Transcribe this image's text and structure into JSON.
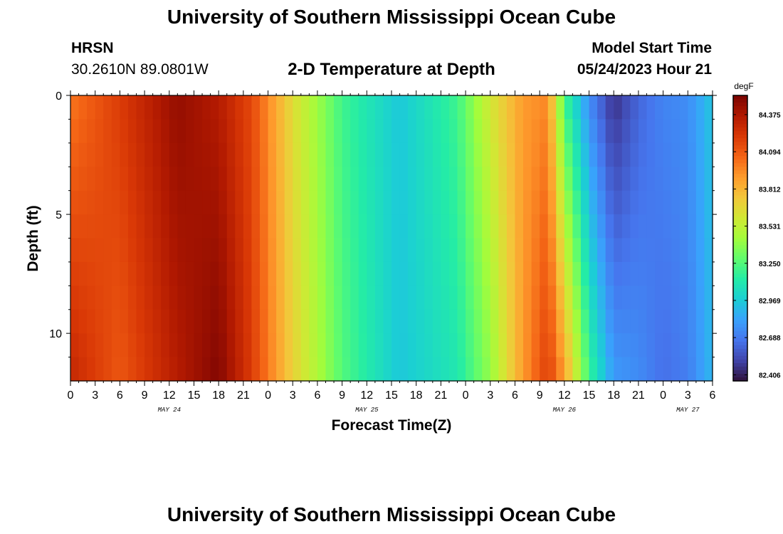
{
  "header": {
    "title": "University of Southern Mississippi Ocean Cube",
    "station": "HRSN",
    "coords": "30.2610N  89.0801W",
    "chart_title": "2-D Temperature at Depth",
    "start_label": "Model Start Time",
    "start_value": "05/24/2023 Hour 21"
  },
  "footer": {
    "title": "University of Southern Mississippi Ocean Cube"
  },
  "chart_data": {
    "type": "heatmap",
    "title": "2-D Temperature at Depth",
    "xlabel": "Forecast Time(Z)",
    "ylabel": "Depth (ft)",
    "y_ticks": [
      "0",
      "5",
      "10"
    ],
    "ylim": [
      0,
      12
    ],
    "y_inverted": true,
    "x_hours": [
      0,
      3,
      6,
      9,
      12,
      15,
      18,
      21,
      24,
      27,
      30,
      33,
      36,
      39,
      42,
      45,
      48,
      51,
      54,
      57,
      60,
      63,
      66,
      69,
      72,
      75,
      78
    ],
    "x_tick_labels": [
      "0",
      "3",
      "6",
      "9",
      "12",
      "15",
      "18",
      "21",
      "0",
      "3",
      "6",
      "9",
      "12",
      "15",
      "18",
      "21",
      "0",
      "3",
      "6",
      "9",
      "12",
      "15",
      "18",
      "21",
      "0",
      "3",
      "6"
    ],
    "date_labels": [
      {
        "label": "MAY 24",
        "hour": 12
      },
      {
        "label": "MAY 25",
        "hour": 36
      },
      {
        "label": "MAY 26",
        "hour": 60
      },
      {
        "label": "MAY 27",
        "hour": 75
      }
    ],
    "colorbar": {
      "unit": "degF",
      "min": 82.36,
      "max": 84.52,
      "tick_values": [
        84.375,
        84.094,
        83.812,
        83.531,
        83.25,
        82.969,
        82.688,
        82.406
      ],
      "tick_labels": [
        "84.375",
        "84.094",
        "83.812",
        "83.531",
        "83.250",
        "82.969",
        "82.688",
        "82.406"
      ],
      "colormap": [
        "#30123b",
        "#4145ab",
        "#4675ed",
        "#39a2fc",
        "#1bcfd4",
        "#24eca6",
        "#61fc6c",
        "#a4fc3b",
        "#d1e834",
        "#f3c63a",
        "#fe9b2d",
        "#f36315",
        "#d93806",
        "#b11901",
        "#7a0402"
      ]
    },
    "profile": {
      "hours": [
        0,
        6,
        13,
        18,
        22,
        27,
        33,
        40,
        47,
        51,
        55,
        58,
        60,
        63,
        66,
        69,
        72,
        75,
        78
      ],
      "surface_degF": [
        84.0,
        84.2,
        84.45,
        84.35,
        84.15,
        83.65,
        83.2,
        82.95,
        83.2,
        83.6,
        83.9,
        83.95,
        83.2,
        82.75,
        82.45,
        82.62,
        82.72,
        82.75,
        82.95
      ],
      "bottom_degF": [
        84.3,
        84.1,
        84.35,
        84.5,
        84.2,
        83.7,
        83.25,
        82.95,
        83.1,
        83.4,
        83.9,
        84.2,
        83.9,
        83.2,
        82.8,
        82.75,
        82.65,
        82.7,
        82.9
      ]
    }
  }
}
